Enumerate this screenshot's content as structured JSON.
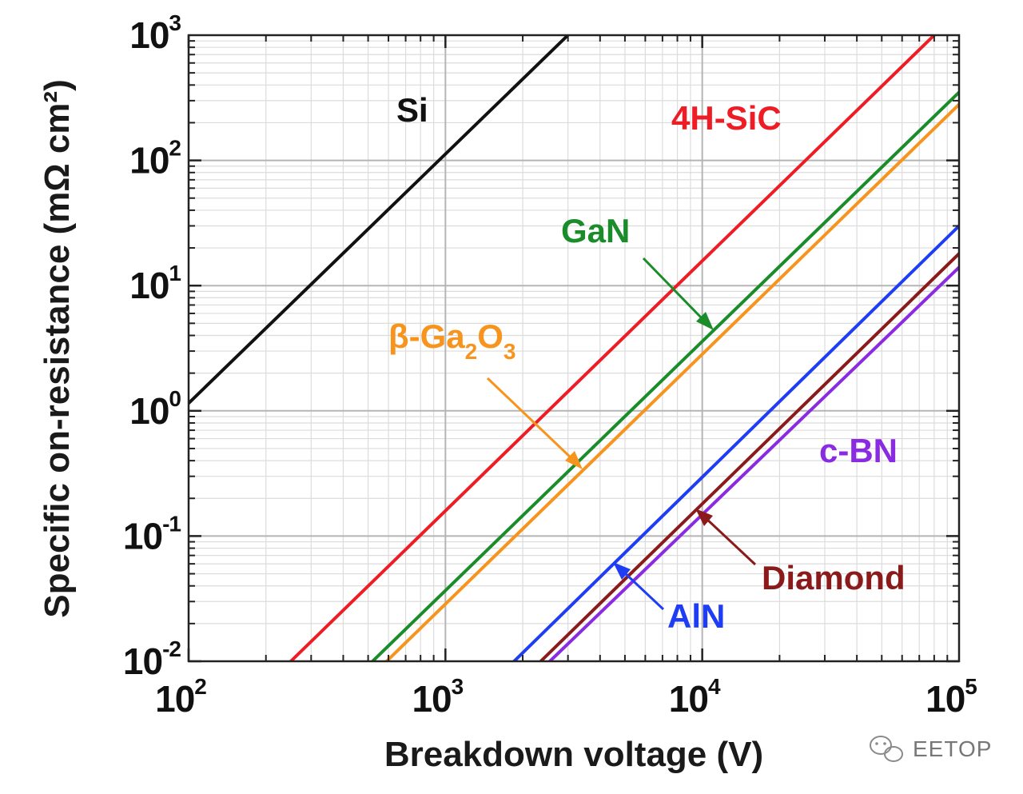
{
  "chart_data": {
    "type": "line",
    "x_scale": "log",
    "y_scale": "log",
    "xlim": [
      100,
      100000
    ],
    "ylim": [
      0.01,
      1000
    ],
    "xlabel": "Breakdown voltage (V)",
    "ylabel": "Specific on-resistance (mΩ cm²)",
    "grid": true,
    "x_ticks": [
      {
        "base": "10",
        "exp": "2"
      },
      {
        "base": "10",
        "exp": "3"
      },
      {
        "base": "10",
        "exp": "4"
      },
      {
        "base": "10",
        "exp": "5"
      }
    ],
    "y_ticks": [
      {
        "base": "10",
        "exp": "-2"
      },
      {
        "base": "10",
        "exp": "-1"
      },
      {
        "base": "10",
        "exp": "0"
      },
      {
        "base": "10",
        "exp": "1"
      },
      {
        "base": "10",
        "exp": "2"
      },
      {
        "base": "10",
        "exp": "3"
      }
    ],
    "series": [
      {
        "name": "Si",
        "label": "Si",
        "color": "#111111",
        "x": [
          100,
          3000
        ],
        "y": [
          1.15,
          1000
        ]
      },
      {
        "name": "4H-SiC",
        "label": "4H-SiC",
        "color": "#ee1c24",
        "x": [
          250,
          80000
        ],
        "y": [
          0.01,
          1000
        ]
      },
      {
        "name": "GaN",
        "label": "GaN",
        "color": "#1a8c2a",
        "x": [
          520,
          100000
        ],
        "y": [
          0.01,
          350
        ]
      },
      {
        "name": "beta-Ga2O3",
        "label_main": "β-Ga",
        "label_sub1": "2",
        "label_mid": "O",
        "label_sub2": "3",
        "color": "#f7941d",
        "x": [
          590,
          100000
        ],
        "y": [
          0.01,
          280
        ]
      },
      {
        "name": "AlN",
        "label": "AlN",
        "color": "#1f3df5",
        "x": [
          1850,
          100000
        ],
        "y": [
          0.01,
          30
        ]
      },
      {
        "name": "Diamond",
        "label": "Diamond",
        "color": "#8b1a1a",
        "x": [
          2350,
          100000
        ],
        "y": [
          0.01,
          18
        ]
      },
      {
        "name": "c-BN",
        "label": "c-BN",
        "color": "#8a2be2",
        "x": [
          2550,
          100000
        ],
        "y": [
          0.01,
          14
        ]
      }
    ]
  },
  "watermark": {
    "text": "EETOP",
    "icon": "wechat-icon"
  }
}
